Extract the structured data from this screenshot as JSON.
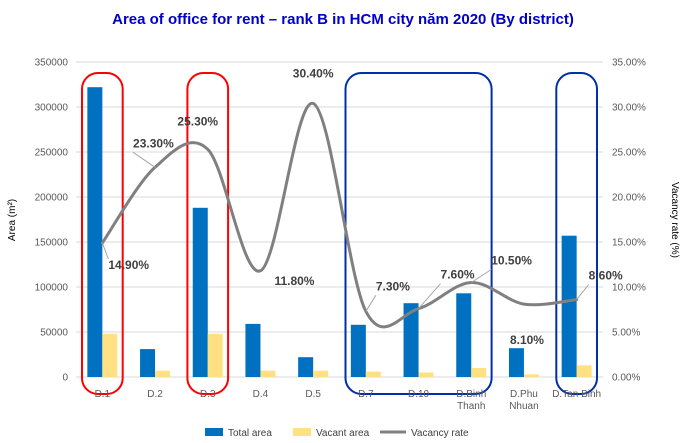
{
  "chart_data": {
    "type": "bar",
    "title": "Area of office for rent – rank B in HCM city năm 2020 (By district)",
    "ylabel": "Area (m²)",
    "y2label": "Vacancy rate (%)",
    "ylim": [
      0,
      350000
    ],
    "y2lim": [
      0,
      35
    ],
    "yticks": [
      "0",
      "50000",
      "100000",
      "150000",
      "200000",
      "250000",
      "300000",
      "350000"
    ],
    "y2ticks": [
      "0.00%",
      "5.00%",
      "10.00%",
      "15.00%",
      "20.00%",
      "25.00%",
      "30.00%",
      "35.00%"
    ],
    "categories": [
      "D.1",
      "D.2",
      "D.3",
      "D.4",
      "D.5",
      "D.7",
      "D.10",
      "D.Binh Thanh",
      "D.Phu Nhuan",
      "D.Tan Binh"
    ],
    "category_lines": [
      [
        "D.1"
      ],
      [
        "D.2"
      ],
      [
        "D.3"
      ],
      [
        "D.4"
      ],
      [
        "D.5"
      ],
      [
        "D.7"
      ],
      [
        "D.10"
      ],
      [
        "D.Binh",
        "Thanh"
      ],
      [
        "D.Phu",
        "Nhuan"
      ],
      [
        "D.Tan Binh"
      ]
    ],
    "series": [
      {
        "name": "Total area",
        "kind": "bar",
        "axis": "left",
        "color": "#0070C0",
        "values": [
          322000,
          31000,
          188000,
          59000,
          22000,
          58000,
          82000,
          93000,
          32000,
          157000
        ]
      },
      {
        "name": "Vacant area",
        "kind": "bar",
        "axis": "left",
        "color": "#FFE083",
        "values": [
          48000,
          7000,
          48000,
          7000,
          7000,
          6000,
          5000,
          10000,
          3000,
          13000
        ]
      },
      {
        "name": "Vacancy rate",
        "kind": "line",
        "axis": "right",
        "color": "#808080",
        "values": [
          14.9,
          23.3,
          25.3,
          11.8,
          30.4,
          7.3,
          7.6,
          10.5,
          8.1,
          8.6
        ],
        "labels": [
          "14.90%",
          "23.30%",
          "25.30%",
          "11.80%",
          "30.40%",
          "7.30%",
          "7.60%",
          "10.50%",
          "8.10%",
          "8.60%"
        ]
      }
    ],
    "grid": true,
    "legend": "bottom",
    "highlight_groups": [
      {
        "color": "#FF0000",
        "categories": [
          "D.1"
        ]
      },
      {
        "color": "#FF0000",
        "categories": [
          "D.3"
        ]
      },
      {
        "color": "#002FA7",
        "categories": [
          "D.7",
          "D.10",
          "D.Binh Thanh"
        ]
      },
      {
        "color": "#002FA7",
        "categories": [
          "D.Tan Binh"
        ]
      }
    ],
    "colors": {
      "title": "#0000CC",
      "grid": "#D9D9D9"
    }
  }
}
